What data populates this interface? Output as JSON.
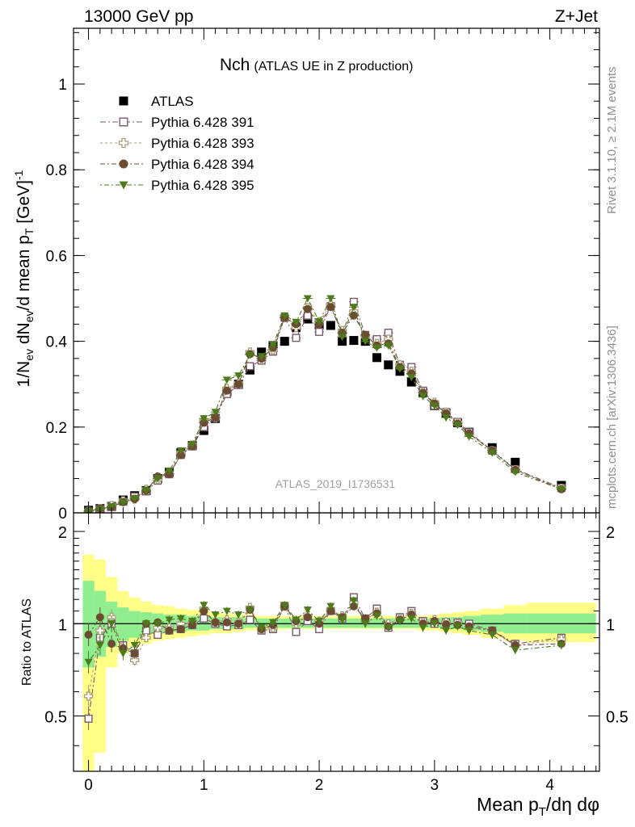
{
  "header": {
    "left": "13000 GeV pp",
    "right": "Z+Jet"
  },
  "side_labels": {
    "rivet": "Rivet 3.1.10, ≥ 2.1M events",
    "mcplots": "mcplots.cern.ch [arXiv:1306.3436]"
  },
  "colors": {
    "atlas": "#000000",
    "p391": "#7b5a6e",
    "p393": "#a89e78",
    "p394": "#6b4c33",
    "p395": "#4f7a1c",
    "band_inner": "#90ee90",
    "band_outer": "#ffff88"
  },
  "chart_data": [
    {
      "type": "scatter",
      "title": "Nch",
      "subtitle": "(ATLAS UE in Z production)",
      "ylabel": "1/N_ev dN_ev/d mean p_T [GeV]^-1",
      "ylabel_parts": {
        "a": "1/N",
        "b": "ev",
        "c": " dN",
        "d": "ev",
        "e": "/d mean p",
        "f": "T",
        "g": " [GeV]",
        "h": "-1"
      },
      "analysis_label": "ATLAS_2019_I1736531",
      "xlim": [
        -0.13,
        4.43
      ],
      "ylim": [
        0,
        1.13
      ],
      "yticks": [
        0,
        0.2,
        0.4,
        0.6,
        0.8,
        1
      ],
      "ytick_labels": [
        "0",
        "0.2",
        "0.4",
        "0.6",
        "0.8",
        "1"
      ],
      "x": [
        0.0,
        0.1,
        0.2,
        0.3,
        0.4,
        0.5,
        0.6,
        0.7,
        0.8,
        0.9,
        1.0,
        1.1,
        1.2,
        1.3,
        1.4,
        1.5,
        1.6,
        1.7,
        1.8,
        1.9,
        2.0,
        2.1,
        2.2,
        2.3,
        2.4,
        2.5,
        2.6,
        2.7,
        2.8,
        2.9,
        3.0,
        3.1,
        3.2,
        3.3,
        3.5,
        3.7,
        4.1
      ],
      "series": [
        {
          "name": "ATLAS",
          "key": "atlas",
          "marker": "square-filled",
          "values": [
            0.006,
            0.01,
            0.015,
            0.03,
            0.04,
            0.052,
            0.08,
            0.095,
            0.14,
            0.157,
            0.192,
            0.22,
            0.282,
            0.3,
            0.333,
            0.375,
            0.39,
            0.4,
            0.432,
            0.452,
            0.438,
            0.437,
            0.4,
            0.402,
            0.4,
            0.362,
            0.345,
            0.33,
            0.305,
            0.28,
            0.25,
            0.233,
            0.21,
            0.188,
            0.152,
            0.118,
            0.064
          ]
        },
        {
          "name": "Pythia 6.428 391",
          "key": "p391",
          "marker": "square-open",
          "values": [
            0.003,
            0.009,
            0.015,
            0.026,
            0.038,
            0.05,
            0.075,
            0.09,
            0.135,
            0.155,
            0.2,
            0.222,
            0.277,
            0.298,
            0.342,
            0.355,
            0.376,
            0.455,
            0.408,
            0.46,
            0.422,
            0.482,
            0.418,
            0.492,
            0.415,
            0.405,
            0.42,
            0.345,
            0.34,
            0.285,
            0.25,
            0.235,
            0.212,
            0.188,
            0.145,
            0.102,
            0.058
          ]
        },
        {
          "name": "Pythia 6.428 393",
          "key": "p393",
          "marker": "cross-open",
          "values": [
            0.004,
            0.01,
            0.017,
            0.028,
            0.032,
            0.055,
            0.078,
            0.092,
            0.14,
            0.158,
            0.215,
            0.222,
            0.29,
            0.302,
            0.375,
            0.36,
            0.38,
            0.455,
            0.432,
            0.478,
            0.446,
            0.485,
            0.425,
            0.47,
            0.412,
            0.395,
            0.405,
            0.345,
            0.33,
            0.282,
            0.258,
            0.235,
            0.21,
            0.183,
            0.145,
            0.1,
            0.057
          ]
        },
        {
          "name": "Pythia 6.428 394",
          "key": "p394",
          "marker": "circle-filled",
          "values": [
            0.005,
            0.01,
            0.013,
            0.025,
            0.032,
            0.052,
            0.085,
            0.09,
            0.135,
            0.155,
            0.21,
            0.222,
            0.285,
            0.3,
            0.37,
            0.36,
            0.385,
            0.455,
            0.44,
            0.475,
            0.44,
            0.48,
            0.42,
            0.46,
            0.415,
            0.39,
            0.395,
            0.34,
            0.325,
            0.28,
            0.255,
            0.232,
            0.208,
            0.185,
            0.145,
            0.1,
            0.055
          ]
        },
        {
          "name": "Pythia 6.428 395",
          "key": "p395",
          "marker": "triangle-down-filled",
          "values": [
            0.004,
            0.008,
            0.015,
            0.024,
            0.034,
            0.052,
            0.08,
            0.098,
            0.145,
            0.16,
            0.22,
            0.235,
            0.31,
            0.32,
            0.368,
            0.365,
            0.392,
            0.46,
            0.445,
            0.5,
            0.446,
            0.5,
            0.41,
            0.48,
            0.4,
            0.385,
            0.39,
            0.336,
            0.316,
            0.272,
            0.25,
            0.222,
            0.205,
            0.178,
            0.14,
            0.095,
            0.055
          ]
        }
      ]
    },
    {
      "type": "scatter",
      "title": "",
      "xlabel": "Mean p_T/dη dφ",
      "xlabel_parts": {
        "a": "Mean p",
        "b": "T",
        "c": "/dη dφ"
      },
      "ylabel": "Ratio to ATLAS",
      "xlim": [
        -0.13,
        4.43
      ],
      "ylim": [
        0.33,
        2.3
      ],
      "log_y": true,
      "xticks": [
        0,
        1,
        2,
        3,
        4
      ],
      "xtick_labels": [
        "0",
        "1",
        "2",
        "3",
        "4"
      ],
      "yticks": [
        0.5,
        1,
        2
      ],
      "ytick_labels": [
        "0.5",
        "1",
        "2"
      ],
      "reference_line": 1,
      "x": [
        0.0,
        0.1,
        0.2,
        0.3,
        0.4,
        0.5,
        0.6,
        0.7,
        0.8,
        0.9,
        1.0,
        1.1,
        1.2,
        1.3,
        1.4,
        1.5,
        1.6,
        1.7,
        1.8,
        1.9,
        2.0,
        2.1,
        2.2,
        2.3,
        2.4,
        2.5,
        2.6,
        2.7,
        2.8,
        2.9,
        3.0,
        3.1,
        3.2,
        3.3,
        3.5,
        3.7,
        4.1
      ],
      "band_edges": [
        -0.05,
        0.05,
        0.15,
        0.25,
        0.35,
        0.45,
        0.55,
        0.65,
        0.75,
        0.85,
        0.95,
        1.05,
        1.15,
        1.25,
        1.35,
        1.45,
        1.55,
        1.65,
        1.75,
        1.85,
        1.95,
        2.05,
        2.15,
        2.25,
        2.35,
        2.45,
        2.55,
        2.65,
        2.75,
        2.85,
        2.95,
        3.05,
        3.15,
        3.25,
        3.4,
        3.6,
        3.8,
        4.4
      ],
      "band_inner": {
        "lo": [
          0.72,
          0.78,
          0.84,
          0.88,
          0.9,
          0.92,
          0.93,
          0.94,
          0.94,
          0.95,
          0.95,
          0.96,
          0.96,
          0.96,
          0.97,
          0.97,
          0.97,
          0.97,
          0.97,
          0.97,
          0.97,
          0.97,
          0.97,
          0.97,
          0.97,
          0.97,
          0.97,
          0.97,
          0.97,
          0.97,
          0.97,
          0.96,
          0.96,
          0.95,
          0.94,
          0.93,
          0.93
        ],
        "hi": [
          1.38,
          1.28,
          1.18,
          1.13,
          1.1,
          1.09,
          1.08,
          1.07,
          1.07,
          1.06,
          1.06,
          1.05,
          1.05,
          1.05,
          1.04,
          1.04,
          1.04,
          1.04,
          1.04,
          1.04,
          1.04,
          1.04,
          1.04,
          1.04,
          1.04,
          1.04,
          1.04,
          1.04,
          1.04,
          1.04,
          1.04,
          1.05,
          1.05,
          1.06,
          1.07,
          1.08,
          1.08
        ]
      },
      "band_outer": {
        "lo": [
          0.3,
          0.38,
          0.72,
          0.8,
          0.84,
          0.86,
          0.88,
          0.89,
          0.9,
          0.91,
          0.92,
          0.93,
          0.93,
          0.94,
          0.95,
          0.95,
          0.95,
          0.96,
          0.96,
          0.96,
          0.96,
          0.96,
          0.96,
          0.96,
          0.96,
          0.96,
          0.96,
          0.96,
          0.96,
          0.95,
          0.95,
          0.94,
          0.93,
          0.92,
          0.9,
          0.88,
          0.87
        ],
        "hi": [
          1.68,
          1.62,
          1.42,
          1.28,
          1.22,
          1.18,
          1.15,
          1.14,
          1.12,
          1.11,
          1.1,
          1.09,
          1.08,
          1.07,
          1.07,
          1.06,
          1.06,
          1.06,
          1.06,
          1.06,
          1.06,
          1.06,
          1.06,
          1.06,
          1.06,
          1.06,
          1.06,
          1.06,
          1.06,
          1.06,
          1.07,
          1.08,
          1.09,
          1.1,
          1.12,
          1.15,
          1.17
        ]
      },
      "series": [
        {
          "name": "Pythia 6.428 391",
          "key": "p391",
          "marker": "square-open",
          "values": [
            0.49,
            0.9,
            1.0,
            0.85,
            0.8,
            0.95,
            0.92,
            0.95,
            0.96,
            0.99,
            1.04,
            1.0,
            0.98,
            0.99,
            1.03,
            0.95,
            0.96,
            1.14,
            0.94,
            1.02,
            0.96,
            1.1,
            1.04,
            1.22,
            1.04,
            1.12,
            0.97,
            1.05,
            1.1,
            1.02,
            1.0,
            1.01,
            1.01,
            1.0,
            0.95,
            0.86,
            0.9
          ]
        },
        {
          "name": "Pythia 6.428 393",
          "key": "p393",
          "marker": "cross-open",
          "values": [
            0.58,
            0.95,
            1.05,
            0.83,
            0.76,
            0.9,
            0.97,
            0.97,
            1.0,
            1.0,
            1.12,
            1.01,
            1.03,
            1.01,
            1.13,
            0.96,
            0.97,
            1.14,
            1.0,
            1.06,
            1.02,
            1.11,
            1.06,
            1.17,
            1.03,
            1.09,
            1.0,
            1.04,
            1.08,
            1.01,
            1.03,
            1.01,
            1.0,
            0.97,
            0.95,
            0.85,
            0.89
          ]
        },
        {
          "name": "Pythia 6.428 394",
          "key": "p394",
          "marker": "circle-filled",
          "values": [
            0.92,
            1.05,
            0.86,
            0.83,
            0.8,
            1.0,
            1.01,
            0.95,
            0.96,
            0.99,
            1.1,
            1.01,
            1.01,
            1.0,
            1.11,
            0.96,
            0.99,
            1.14,
            1.02,
            1.05,
            1.0,
            1.1,
            1.05,
            1.14,
            1.04,
            1.08,
            0.98,
            1.03,
            1.07,
            1.0,
            1.02,
            0.995,
            0.99,
            0.98,
            0.95,
            0.85,
            0.86
          ]
        },
        {
          "name": "Pythia 6.428 395",
          "key": "p395",
          "marker": "triangle-down-filled",
          "values": [
            0.75,
            0.85,
            1.0,
            0.8,
            0.85,
            1.0,
            1.0,
            1.03,
            1.04,
            1.02,
            1.15,
            1.07,
            1.1,
            1.07,
            1.11,
            0.97,
            1.01,
            1.15,
            1.03,
            1.11,
            1.02,
            1.14,
            1.03,
            1.19,
            1.0,
            1.06,
            0.97,
            1.02,
            1.04,
            0.97,
            1.0,
            0.95,
            0.98,
            0.95,
            0.92,
            0.82,
            0.85
          ]
        }
      ]
    }
  ]
}
